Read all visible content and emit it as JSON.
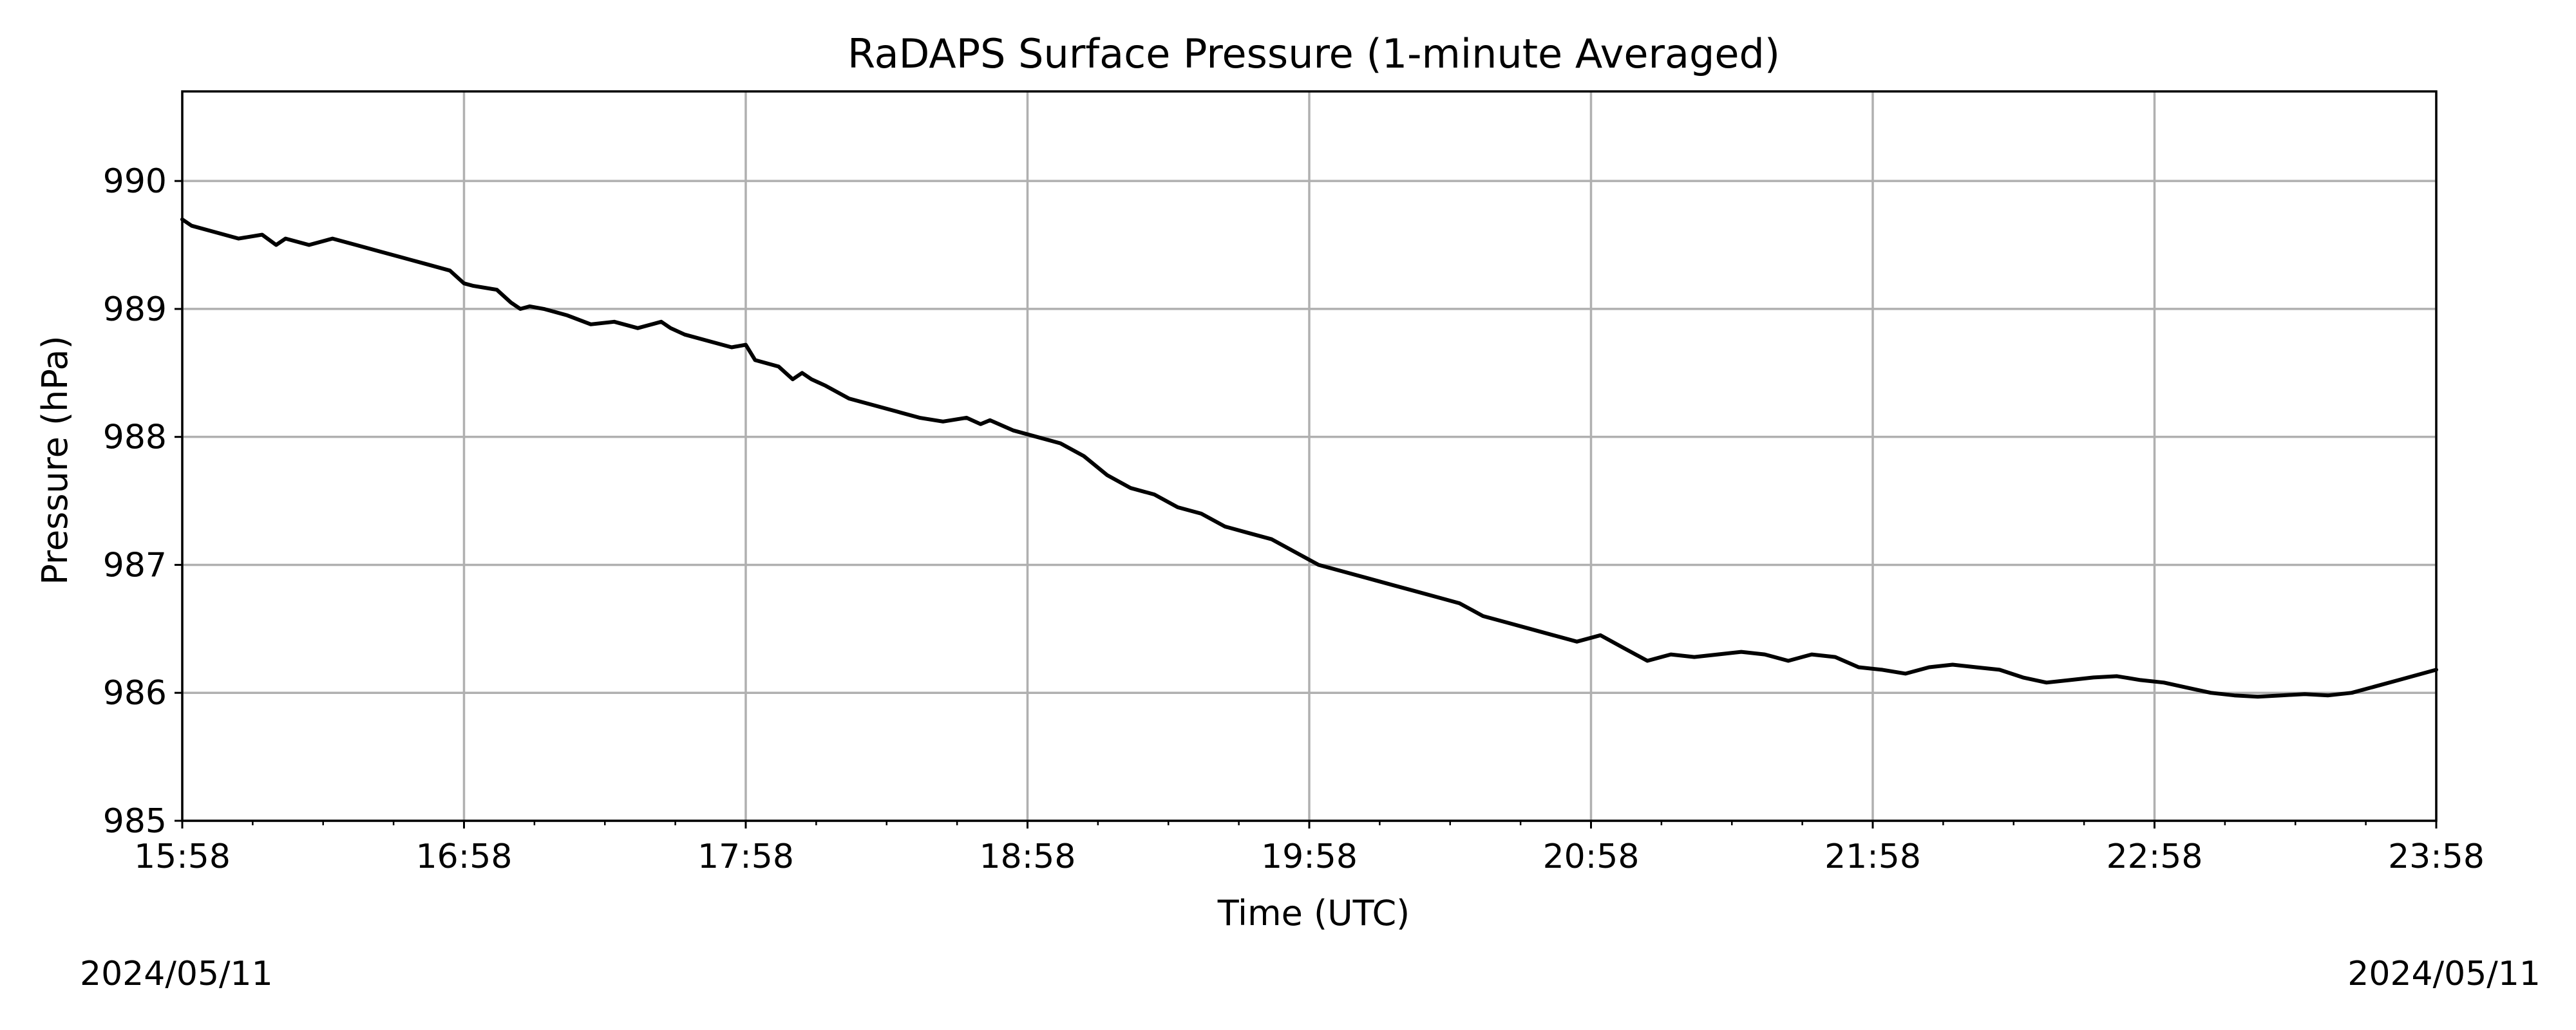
{
  "chart_data": {
    "type": "line",
    "title": "RaDAPS Surface Pressure (1-minute Averaged)",
    "xlabel": "Time (UTC)",
    "ylabel": "Pressure (hPa)",
    "x_ticks": [
      "15:58",
      "16:58",
      "17:58",
      "18:58",
      "19:58",
      "20:58",
      "21:58",
      "22:58",
      "23:58"
    ],
    "y_ticks": [
      "985",
      "986",
      "987",
      "988",
      "989",
      "990"
    ],
    "xlim": [
      "15:58",
      "23:58"
    ],
    "ylim": [
      985,
      990.7
    ],
    "grid": true,
    "legend": "none",
    "line_color": "#000000",
    "grid_color": "#b0b0b0",
    "date_left": "2024/05/11",
    "date_right": "2024/05/11",
    "series": [
      {
        "x": [
          "15:58",
          "16:00",
          "16:05",
          "16:10",
          "16:15",
          "16:18",
          "16:20",
          "16:25",
          "16:30",
          "16:35",
          "16:40",
          "16:45",
          "16:50",
          "16:55",
          "16:58",
          "17:00",
          "17:05",
          "17:08",
          "17:10",
          "17:12",
          "17:15",
          "17:20",
          "17:25",
          "17:30",
          "17:35",
          "17:40",
          "17:42",
          "17:45",
          "17:50",
          "17:55",
          "17:58",
          "18:00",
          "18:05",
          "18:08",
          "18:10",
          "18:12",
          "18:15",
          "18:20",
          "18:25",
          "18:30",
          "18:35",
          "18:40",
          "18:45",
          "18:48",
          "18:50",
          "18:55",
          "19:00",
          "19:05",
          "19:10",
          "19:15",
          "19:20",
          "19:25",
          "19:30",
          "19:35",
          "19:40",
          "19:45",
          "19:50",
          "19:55",
          "20:00",
          "20:05",
          "20:10",
          "20:15",
          "20:20",
          "20:25",
          "20:30",
          "20:35",
          "20:40",
          "20:45",
          "20:50",
          "20:55",
          "21:00",
          "21:05",
          "21:10",
          "21:15",
          "21:20",
          "21:25",
          "21:30",
          "21:35",
          "21:40",
          "21:45",
          "21:50",
          "21:55",
          "22:00",
          "22:05",
          "22:10",
          "22:15",
          "22:20",
          "22:25",
          "22:30",
          "22:35",
          "22:40",
          "22:45",
          "22:50",
          "22:55",
          "23:00",
          "23:05",
          "23:10",
          "23:15",
          "23:20",
          "23:25",
          "23:30",
          "23:35",
          "23:40",
          "23:45",
          "23:50",
          "23:55",
          "23:58"
        ],
        "y": [
          989.7,
          989.65,
          989.6,
          989.55,
          989.58,
          989.5,
          989.55,
          989.5,
          989.55,
          989.5,
          989.45,
          989.4,
          989.35,
          989.3,
          989.2,
          989.18,
          989.15,
          989.05,
          989.0,
          989.02,
          989.0,
          988.95,
          988.88,
          988.9,
          988.85,
          988.9,
          988.85,
          988.8,
          988.75,
          988.7,
          988.72,
          988.6,
          988.55,
          988.45,
          988.5,
          988.45,
          988.4,
          988.3,
          988.25,
          988.2,
          988.15,
          988.12,
          988.15,
          988.1,
          988.13,
          988.05,
          988.0,
          987.95,
          987.85,
          987.7,
          987.6,
          987.55,
          987.45,
          987.4,
          987.3,
          987.25,
          987.2,
          987.1,
          987.0,
          986.95,
          986.9,
          986.85,
          986.8,
          986.75,
          986.7,
          986.6,
          986.55,
          986.5,
          986.45,
          986.4,
          986.45,
          986.35,
          986.25,
          986.3,
          986.28,
          986.3,
          986.32,
          986.3,
          986.25,
          986.3,
          986.28,
          986.2,
          986.18,
          986.15,
          986.2,
          986.22,
          986.2,
          986.18,
          986.12,
          986.08,
          986.1,
          986.12,
          986.13,
          986.1,
          986.08,
          986.04,
          986.0,
          985.98,
          985.97,
          985.98,
          985.99,
          985.98,
          986.0,
          986.05,
          986.1,
          986.15,
          986.18
        ]
      }
    ]
  }
}
